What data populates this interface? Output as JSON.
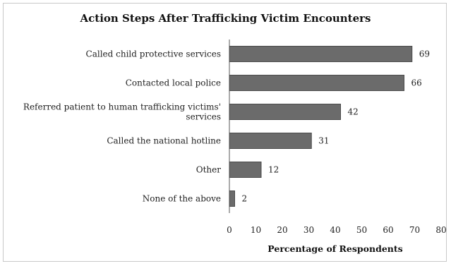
{
  "chart_data": {
    "type": "bar",
    "orientation": "horizontal",
    "title": "Action Steps After Trafficking Victim Encounters",
    "xlabel": "Percentage of Respondents",
    "ylabel": "",
    "categories": [
      [
        "Called child protective services"
      ],
      [
        "Contacted local police"
      ],
      [
        "Referred patient to human trafficking victims'",
        "services"
      ],
      [
        "Called the national hotline"
      ],
      [
        "Other"
      ],
      [
        "None of the above"
      ]
    ],
    "values": [
      69,
      66,
      42,
      31,
      12,
      2
    ],
    "xlim": [
      0,
      80
    ],
    "ticks": [
      0,
      10,
      20,
      30,
      40,
      50,
      60,
      70,
      80
    ],
    "grid": false,
    "bar_color": "#6b6b6b",
    "bar_edge_color": "#4a4a4a"
  }
}
